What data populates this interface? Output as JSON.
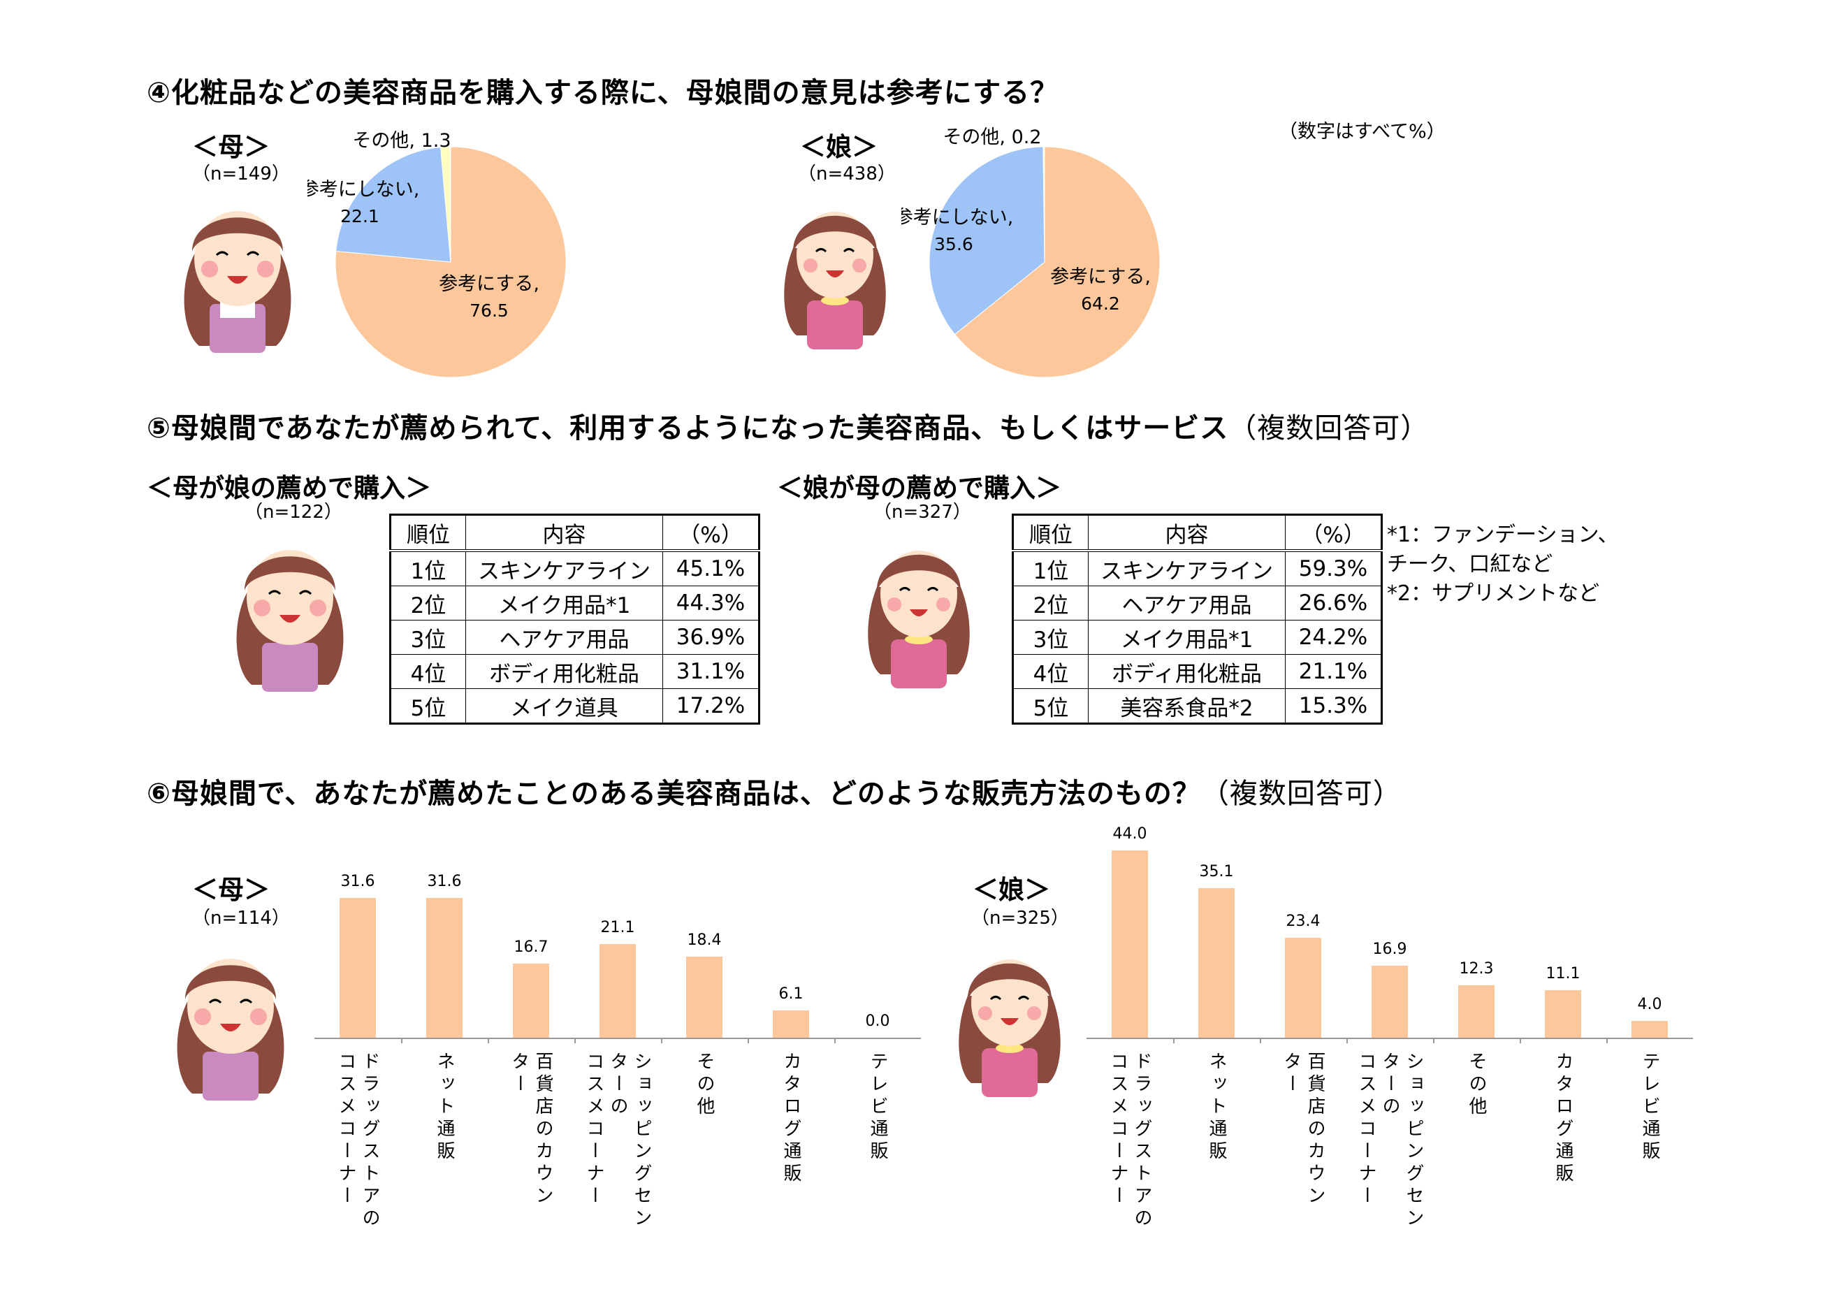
{
  "q4": {
    "title": "④化粧品などの美容商品を購入する際に、母娘間の意見は参考にする？",
    "unit_note": "（数字はすべて%）",
    "mother": {
      "label": "＜母＞",
      "n": "（n=149）"
    },
    "daughter": {
      "label": "＜娘＞",
      "n": "（n=438）"
    }
  },
  "q5": {
    "title": "⑤母娘間であなたが薦められて、利用するようになった美容商品、もしくはサービス",
    "title_note": "（複数回答可）",
    "mother": {
      "label": "＜母が娘の薦めで購入＞",
      "n": "（n=122）",
      "headers": [
        "順位",
        "内容",
        "（%）"
      ],
      "rows": [
        [
          "1位",
          "スキンケアライン",
          "45.1%"
        ],
        [
          "2位",
          "メイク用品*1",
          "44.3%"
        ],
        [
          "3位",
          "ヘアケア用品",
          "36.9%"
        ],
        [
          "4位",
          "ボディ用化粧品",
          "31.1%"
        ],
        [
          "5位",
          "メイク道具",
          "17.2%"
        ]
      ]
    },
    "daughter": {
      "label": "＜娘が母の薦めで購入＞",
      "n": "（n=327）",
      "headers": [
        "順位",
        "内容",
        "（%）"
      ],
      "rows": [
        [
          "1位",
          "スキンケアライン",
          "59.3%"
        ],
        [
          "2位",
          "ヘアケア用品",
          "26.6%"
        ],
        [
          "3位",
          "メイク用品*1",
          "24.2%"
        ],
        [
          "4位",
          "ボディ用化粧品",
          "21.1%"
        ],
        [
          "5位",
          "美容系食品*2",
          "15.3%"
        ]
      ]
    },
    "footnotes": [
      "*1：ファンデーション、",
      "チーク、口紅など",
      "*2：サプリメントなど"
    ]
  },
  "q6": {
    "title": "⑥母娘間で、あなたが薦めたことのある美容商品は、どのような販売方法のもの？",
    "title_note": "（複数回答可）",
    "mother": {
      "label": "＜母＞",
      "n": "（n=114）"
    },
    "daughter": {
      "label": "＜娘＞",
      "n": "（n=325）"
    }
  },
  "colors": {
    "orange": "#fcc89b",
    "blue": "#9dc3f7",
    "yellow": "#ffffc0",
    "bar": "#fcc89b"
  },
  "chart_data": [
    {
      "type": "pie",
      "id": "q4-mother",
      "slices": [
        {
          "label": "参考にする",
          "value": 76.5,
          "color": "#fcc89b"
        },
        {
          "label": "参考にしない",
          "value": 22.1,
          "color": "#9dc3f7"
        },
        {
          "label": "その他",
          "value": 1.3,
          "color": "#ffffc0"
        }
      ]
    },
    {
      "type": "pie",
      "id": "q4-daughter",
      "slices": [
        {
          "label": "参考にする",
          "value": 64.2,
          "color": "#fcc89b"
        },
        {
          "label": "参考にしない",
          "value": 35.6,
          "color": "#9dc3f7"
        },
        {
          "label": "その他",
          "value": 0.2,
          "color": "#ffffc0"
        }
      ]
    },
    {
      "type": "bar",
      "id": "q6-mother",
      "categories": [
        "ドラッグストアの\nコスメコーナー",
        "ネット通販",
        "百貨店のカウン\nター",
        "ショッピングセン\nターの\nコスメコーナー",
        "その他",
        "カタログ通販",
        "テレビ通販"
      ],
      "values": [
        31.6,
        31.6,
        16.7,
        21.1,
        18.4,
        6.1,
        0.0
      ],
      "value_labels": [
        "31.6",
        "31.6",
        "16.7",
        "21.1",
        "18.4",
        "6.1",
        "0.0"
      ]
    },
    {
      "type": "bar",
      "id": "q6-daughter",
      "categories": [
        "ドラッグストアの\nコスメコーナー",
        "ネット通販",
        "百貨店のカウン\nター",
        "ショッピングセン\nターの\nコスメコーナー",
        "その他",
        "カタログ通販",
        "テレビ通販"
      ],
      "values": [
        44.0,
        35.1,
        23.4,
        16.9,
        12.3,
        11.1,
        4.0
      ],
      "value_labels": [
        "44.0",
        "35.1",
        "23.4",
        "16.9",
        "12.3",
        "11.1",
        "4.0"
      ]
    }
  ]
}
